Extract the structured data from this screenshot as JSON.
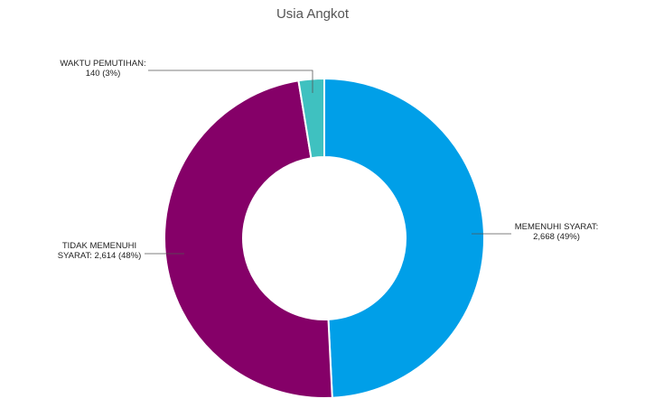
{
  "chart_data": {
    "type": "pie",
    "title": "Usia Angkot",
    "variant": "donut",
    "slices": [
      {
        "label_lines": [
          "MEMENUHI SYARAT:",
          "2,668 (49%)"
        ],
        "category": "MEMENUHI SYARAT",
        "value": 2668,
        "percent_label": "49%",
        "color": "#009fe8"
      },
      {
        "label_lines": [
          "TIDAK MEMENUHI",
          "SYARAT: 2,614 (48%)"
        ],
        "category": "TIDAK MEMENUHI SYARAT",
        "value": 2614,
        "percent_label": "48%",
        "color": "#850068"
      },
      {
        "label_lines": [
          "WAKTU PEMUTIHAN:",
          "140 (3%)"
        ],
        "category": "WAKTU PEMUTIHAN",
        "value": 140,
        "percent_label": "3%",
        "color": "#3fc1c0"
      }
    ],
    "start_angle": "12 o'clock, clockwise",
    "legend": "none"
  }
}
